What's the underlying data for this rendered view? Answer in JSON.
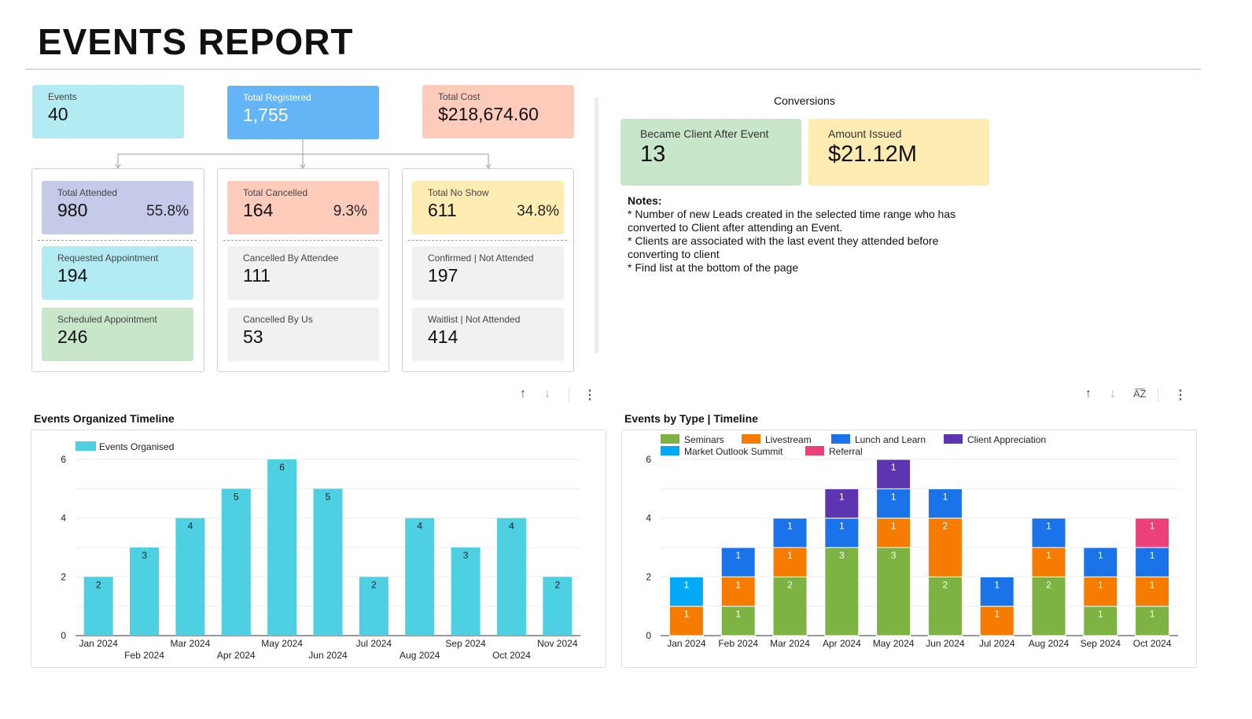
{
  "report_title": "EVENTS REPORT",
  "kpis": {
    "events": {
      "label": "Events",
      "value": "40"
    },
    "registered": {
      "label": "Total Registered",
      "value": "1,755"
    },
    "cost": {
      "label": "Total Cost",
      "value": "$218,674.60"
    }
  },
  "groups": {
    "attended": {
      "label": "Total Attended",
      "value": "980",
      "pct": "55.8%"
    },
    "requested": {
      "label": "Requested Appointment",
      "value": "194"
    },
    "scheduled": {
      "label": "Scheduled Appointment",
      "value": "246"
    },
    "cancelled": {
      "label": "Total Cancelled",
      "value": "164",
      "pct": "9.3%"
    },
    "by_attendee": {
      "label": "Cancelled By Attendee",
      "value": "111"
    },
    "by_us": {
      "label": "Cancelled By Us",
      "value": "53"
    },
    "noshow": {
      "label": "Total No Show",
      "value": "611",
      "pct": "34.8%"
    },
    "confirmed": {
      "label": "Confirmed | Not Attended",
      "value": "197"
    },
    "waitlist": {
      "label": "Waitlist | Not Attended",
      "value": "414"
    }
  },
  "conversions": {
    "title": "Conversions",
    "client": {
      "label": "Became Client After Event",
      "value": "13"
    },
    "amount": {
      "label": "Amount Issued",
      "value": "$21.12M"
    }
  },
  "notes": {
    "heading": "Notes:",
    "lines": [
      "* Number of new Leads created in the selected time range who has converted to Client after attending an Event.",
      "* Clients are associated with the last event they attended before converting to client",
      "* Find list at the bottom of the page"
    ]
  },
  "chart_data": [
    {
      "type": "bar",
      "title": "Events Organized Timeline",
      "legend": "Events Organised",
      "color": "#4dd0e1",
      "categories": [
        "Jan 2024",
        "Feb 2024",
        "Mar 2024",
        "Apr 2024",
        "May 2024",
        "Jun 2024",
        "Jul 2024",
        "Aug 2024",
        "Sep 2024",
        "Oct 2024",
        "Nov 2024"
      ],
      "values": [
        2,
        3,
        4,
        5,
        6,
        5,
        2,
        4,
        3,
        4,
        2
      ],
      "ylim": [
        0,
        6
      ],
      "yticks": [
        0,
        2,
        4,
        6
      ],
      "grid": true
    },
    {
      "type": "bar",
      "stacked": true,
      "title": "Events by Type | Timeline",
      "categories": [
        "Jan 2024",
        "Feb 2024",
        "Mar 2024",
        "Apr 2024",
        "May 2024",
        "Jun 2024",
        "Jul 2024",
        "Aug 2024",
        "Sep 2024",
        "Oct 2024"
      ],
      "series": [
        {
          "name": "Seminars",
          "color": "#7cb342",
          "values": [
            0,
            1,
            2,
            3,
            3,
            2,
            0,
            2,
            1,
            1
          ]
        },
        {
          "name": "Livestream",
          "color": "#f57c00",
          "values": [
            1,
            1,
            1,
            0,
            1,
            2,
            1,
            1,
            1,
            1
          ]
        },
        {
          "name": "Lunch and Learn",
          "color": "#1a73e8",
          "values": [
            0,
            1,
            1,
            1,
            1,
            1,
            1,
            1,
            1,
            1
          ]
        },
        {
          "name": "Client Appreciation",
          "color": "#5e35b1",
          "values": [
            0,
            0,
            0,
            1,
            1,
            0,
            0,
            0,
            0,
            0
          ]
        },
        {
          "name": "Market Outlook Summit",
          "color": "#03a9f4",
          "values": [
            1,
            0,
            0,
            0,
            0,
            0,
            0,
            0,
            0,
            0
          ]
        },
        {
          "name": "Referral",
          "color": "#ec407a",
          "values": [
            0,
            0,
            0,
            0,
            0,
            0,
            0,
            0,
            0,
            1
          ]
        }
      ],
      "ylim": [
        0,
        6
      ],
      "yticks": [
        0,
        2,
        4,
        6
      ],
      "grid": true
    }
  ],
  "icons": {
    "sort_up": "↑",
    "sort_down": "↓",
    "az": "A͞Z",
    "more": "⋮"
  }
}
